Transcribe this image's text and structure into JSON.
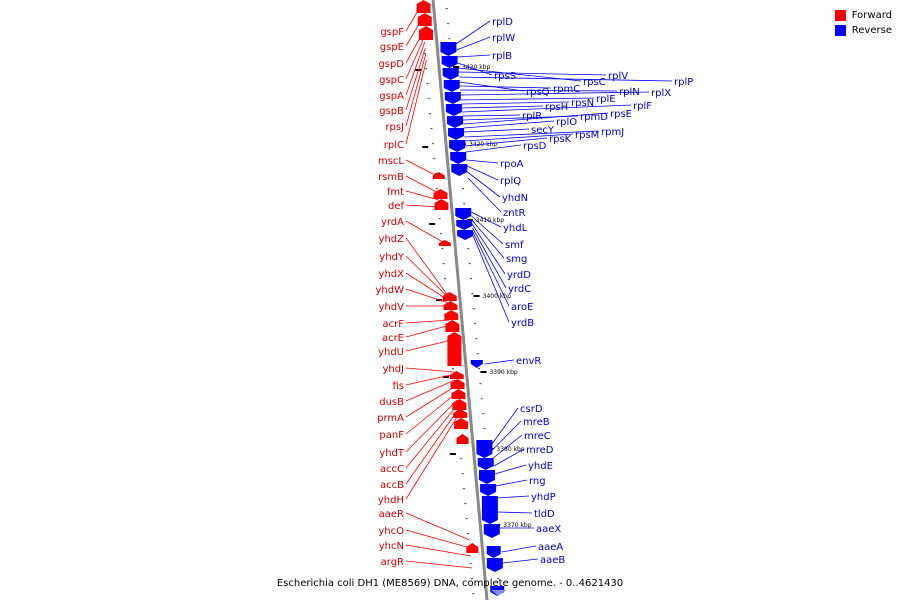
{
  "legend": {
    "forward_label": "Forward",
    "reverse_label": "Reverse",
    "forward_color": "#ff0000",
    "reverse_color": "#0000ff"
  },
  "caption": "Escherichia coli DH1 (ME8569) DNA, complete genome. - 0..4621430",
  "scale_labels": [
    "3430 kbp",
    "3420 kbp",
    "3410 kbp",
    "3400 kbp",
    "3390 kbp",
    "3380 kbp",
    "3370 kbp"
  ],
  "forward_genes": [
    "gspF",
    "gspE",
    "gspD",
    "gspC",
    "gspA",
    "gspB",
    "rpsJ",
    "rplC",
    "mscL",
    "rsmB",
    "fmt",
    "def",
    "yrdA",
    "yhdZ",
    "yhdY",
    "yhdX",
    "yhdW",
    "yhdV",
    "acrF",
    "acrE",
    "yhdU",
    "yhdJ",
    "fis",
    "dusB",
    "prmA",
    "panF",
    "yhdT",
    "accC",
    "accB",
    "yhdH",
    "aaeR",
    "yhcO",
    "yhcN",
    "argR"
  ],
  "reverse_genes": [
    "rplD",
    "rplW",
    "rplB",
    "rpsS",
    "rpsC",
    "rplV",
    "rplP",
    "rpsQ",
    "rpmC",
    "rplN",
    "rplX",
    "rplE",
    "rpsN",
    "rpsH",
    "rplF",
    "rplR",
    "rpmD",
    "rpsE",
    "rplO",
    "secY",
    "rpmJ",
    "rpsM",
    "rpsK",
    "rpsD",
    "rpoA",
    "rplQ",
    "yhdN",
    "zntR",
    "yhdL",
    "smf",
    "smg",
    "yrdD",
    "yrdC",
    "aroE",
    "yrdB",
    "envR",
    "csrD",
    "mreB",
    "mreC",
    "mreD",
    "yhdE",
    "rng",
    "yhdP",
    "tldD",
    "aaeX",
    "aaeA",
    "aaeB"
  ]
}
